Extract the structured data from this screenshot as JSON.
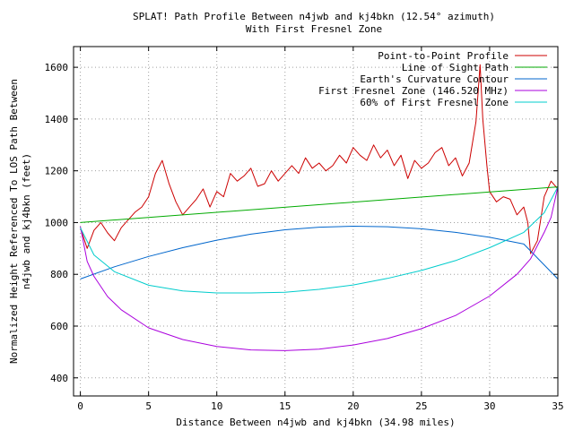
{
  "chart_data": {
    "type": "line",
    "title": "SPLAT! Path Profile Between n4jwb and kj4bkn (12.54° azimuth)",
    "subtitle": "With First Fresnel Zone",
    "xlabel": "Distance Between n4jwb and kj4bkn (34.98 miles)",
    "ylabel_lines": [
      "Normalized Height Referenced To LOS Path Between",
      "n4jwb and kj4bkn (feet)"
    ],
    "xlim": [
      -0.5,
      35
    ],
    "ylim": [
      330,
      1680
    ],
    "x_ticks": [
      0,
      5,
      10,
      15,
      20,
      25,
      30,
      35
    ],
    "y_ticks": [
      400,
      600,
      800,
      1000,
      1200,
      1400,
      1600
    ],
    "grid": true,
    "legend_position": "top-right",
    "series": [
      {
        "name": "Point-to-Point Profile",
        "color": "#cc0000",
        "x": [
          0,
          0.5,
          1,
          1.5,
          2,
          2.5,
          3,
          3.5,
          4,
          4.5,
          5,
          5.5,
          6,
          6.5,
          7,
          7.5,
          8,
          8.5,
          9,
          9.5,
          10,
          10.5,
          11,
          11.5,
          12,
          12.5,
          13,
          13.5,
          14,
          14.5,
          15,
          15.5,
          16,
          16.5,
          17,
          17.5,
          18,
          18.5,
          19,
          19.5,
          20,
          20.5,
          21,
          21.5,
          22,
          22.5,
          23,
          23.5,
          24,
          24.5,
          25,
          25.5,
          26,
          26.5,
          27,
          27.5,
          28,
          28.5,
          29,
          29.3,
          29.5,
          29.8,
          30,
          30.5,
          31,
          31.5,
          32,
          32.5,
          32.8,
          33,
          33.5,
          34,
          34.5,
          35
        ],
        "y": [
          980,
          900,
          970,
          1000,
          960,
          930,
          980,
          1010,
          1040,
          1060,
          1100,
          1190,
          1240,
          1150,
          1080,
          1030,
          1060,
          1090,
          1130,
          1060,
          1120,
          1100,
          1190,
          1160,
          1180,
          1210,
          1140,
          1150,
          1200,
          1160,
          1190,
          1220,
          1190,
          1250,
          1210,
          1230,
          1200,
          1220,
          1260,
          1230,
          1290,
          1260,
          1240,
          1300,
          1250,
          1280,
          1220,
          1260,
          1170,
          1240,
          1210,
          1230,
          1270,
          1290,
          1220,
          1250,
          1180,
          1230,
          1390,
          1610,
          1400,
          1220,
          1120,
          1080,
          1100,
          1090,
          1030,
          1060,
          1000,
          880,
          930,
          1100,
          1160,
          1130
        ]
      },
      {
        "name": "Line of Sight Path",
        "color": "#00aa00",
        "x": [
          0,
          35
        ],
        "y": [
          1000,
          1138
        ]
      },
      {
        "name": "Earth's Curvature Contour",
        "color": "#0066cc",
        "x": [
          0,
          2.5,
          5,
          7.5,
          10,
          12.5,
          15,
          17.5,
          20,
          22.5,
          25,
          27.5,
          30,
          32.5,
          35
        ],
        "y": [
          782,
          829,
          869,
          903,
          932,
          955,
          972,
          982,
          986,
          984,
          976,
          962,
          943,
          917,
          782
        ]
      },
      {
        "name": "First Fresnel Zone (146.520 MHz)",
        "color": "#aa00dd",
        "x": [
          0,
          0.5,
          1,
          2,
          3,
          5,
          7.5,
          10,
          12.5,
          15,
          17.5,
          20,
          22.5,
          25,
          27.5,
          30,
          32,
          33,
          34,
          34.5,
          35
        ],
        "y": [
          985,
          850,
          792,
          714,
          663,
          593,
          548,
          521,
          508,
          505,
          511,
          527,
          552,
          590,
          641,
          716,
          800,
          860,
          962,
          1020,
          1138
        ]
      },
      {
        "name": "60% of First Fresnel Zone",
        "color": "#00cccc",
        "x": [
          0,
          1,
          2.5,
          5,
          7.5,
          10,
          12.5,
          15,
          17.5,
          20,
          22.5,
          25,
          27.5,
          30,
          32.5,
          34,
          35
        ],
        "y": [
          980,
          875,
          810,
          758,
          736,
          728,
          728,
          731,
          742,
          759,
          784,
          815,
          853,
          903,
          962,
          1038,
          1138
        ]
      }
    ]
  }
}
